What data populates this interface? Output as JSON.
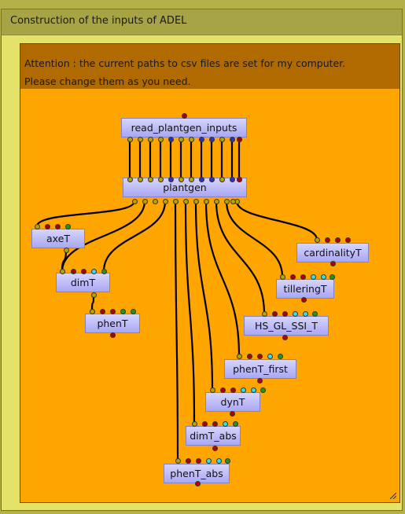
{
  "group": {
    "title": "Construction of the inputs of ADEL"
  },
  "annotation": {
    "lines": [
      "Attention : the current paths to csv files are set for my computer.",
      "Please change them as you need."
    ]
  },
  "colors": {
    "port_yellow": "#b8a400",
    "port_red": "#b40000",
    "port_blue": "#2e2ec8",
    "port_cyan": "#32e1ea",
    "port_green": "#1f9a1f",
    "wire": "#000000"
  },
  "nodes": [
    {
      "id": "read",
      "label": "read_plantgen_inputs",
      "inputs": [
        "red"
      ],
      "outputs": [
        "yellow",
        "yellow",
        "yellow",
        "yellow",
        "blue",
        "yellow",
        "yellow",
        "blue",
        "blue",
        "yellow",
        "blue",
        "blue",
        "red"
      ]
    },
    {
      "id": "plantgen",
      "label": "plantgen",
      "inputs": [
        "yellow",
        "yellow",
        "yellow",
        "yellow",
        "blue",
        "yellow",
        "yellow",
        "blue",
        "blue",
        "yellow",
        "blue",
        "blue",
        "red"
      ],
      "outputs": [
        "yellow",
        "yellow",
        "yellow",
        "yellow",
        "yellow",
        "yellow",
        "yellow",
        "yellow",
        "yellow",
        "yellow",
        "yellow",
        "yellow"
      ]
    },
    {
      "id": "axeT",
      "label": "axeT",
      "inputs": [
        "yellow",
        "red",
        "red",
        "green"
      ],
      "outputs": [
        "yellow"
      ]
    },
    {
      "id": "dimT",
      "label": "dimT",
      "inputs": [
        "yellow",
        "red",
        "red",
        "cyan",
        "green"
      ],
      "outputs": [
        "yellow"
      ]
    },
    {
      "id": "phenT",
      "label": "phenT",
      "inputs": [
        "yellow",
        "red",
        "red",
        "green",
        "green"
      ],
      "outputs": [
        "red"
      ]
    },
    {
      "id": "cardinalityT",
      "label": "cardinalityT",
      "inputs": [
        "yellow",
        "red",
        "red",
        "red"
      ],
      "outputs": [
        "red"
      ]
    },
    {
      "id": "tilleringT",
      "label": "tilleringT",
      "inputs": [
        "yellow",
        "red",
        "red",
        "cyan",
        "cyan",
        "green"
      ],
      "outputs": [
        "red"
      ]
    },
    {
      "id": "HS_GL_SSI_T",
      "label": "HS_GL_SSI_T",
      "inputs": [
        "yellow",
        "red",
        "red",
        "cyan",
        "cyan",
        "green"
      ],
      "outputs": [
        "red"
      ]
    },
    {
      "id": "phenT_first",
      "label": "phenT_first",
      "inputs": [
        "yellow",
        "red",
        "red",
        "cyan",
        "green"
      ],
      "outputs": [
        "red"
      ]
    },
    {
      "id": "dynT",
      "label": "dynT",
      "inputs": [
        "yellow",
        "red",
        "red",
        "cyan",
        "cyan",
        "green"
      ],
      "outputs": [
        "red"
      ]
    },
    {
      "id": "dimT_abs",
      "label": "dimT_abs",
      "inputs": [
        "yellow",
        "red",
        "red",
        "cyan",
        "green"
      ],
      "outputs": [
        "red"
      ]
    },
    {
      "id": "phenT_abs",
      "label": "phenT_abs",
      "inputs": [
        "yellow",
        "red",
        "red",
        "cyan",
        "cyan",
        "green"
      ],
      "outputs": [
        "red"
      ]
    }
  ]
}
